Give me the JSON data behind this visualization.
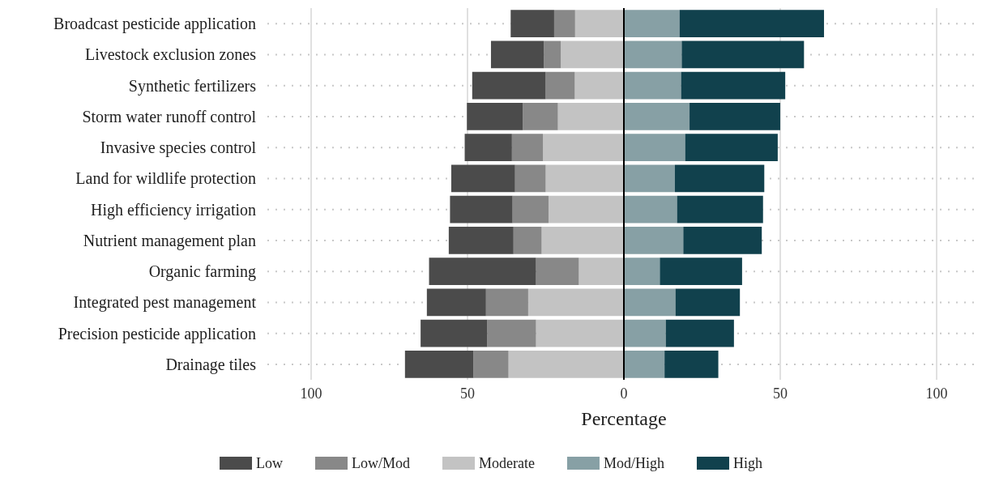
{
  "chart_data": {
    "type": "bar",
    "orientation": "horizontal",
    "stacked": true,
    "xlabel": "Percentage",
    "categories": [
      "Broadcast pesticide application",
      "Livestock exclusion zones",
      "Synthetic fertilizers",
      "Storm water runoff control",
      "Invasive species control",
      "Land for wildlife protection",
      "High efficiency irrigation",
      "Nutrient management plan",
      "Organic farming",
      "Integrated pest management",
      "Precision pesticide application",
      "Drainage tiles"
    ],
    "series": [
      {
        "name": "Moderate",
        "color": "#c3c3c3",
        "values": [
          -15.6,
          -20.2,
          -15.7,
          -21.1,
          -25.9,
          -25.0,
          -24.1,
          -26.3,
          -14.4,
          -30.6,
          -28.1,
          -36.9
        ]
      },
      {
        "name": "Low/Mod",
        "color": "#888888",
        "values": [
          -6.7,
          -5.4,
          -9.3,
          -11.2,
          -9.9,
          -9.8,
          -11.5,
          -9.0,
          -13.7,
          -13.5,
          -15.6,
          -11.2
        ]
      },
      {
        "name": "Low",
        "color": "#4b4b4b",
        "values": [
          -13.9,
          -16.9,
          -23.5,
          -17.9,
          -15.1,
          -20.4,
          -20.0,
          -20.7,
          -34.2,
          -18.9,
          -21.3,
          -21.9
        ]
      },
      {
        "name": "Mod/High",
        "color": "#87a0a5",
        "values": [
          17.8,
          18.5,
          18.3,
          21.0,
          19.6,
          16.3,
          17.0,
          19.0,
          11.5,
          16.5,
          13.4,
          13.0
        ]
      },
      {
        "name": "High",
        "color": "#11414d",
        "values": [
          46.2,
          39.1,
          33.3,
          29.0,
          29.6,
          28.6,
          27.5,
          25.1,
          26.3,
          20.6,
          21.8,
          17.2
        ]
      }
    ],
    "xlim": [
      -114,
      114
    ],
    "xticks": [
      {
        "value": -100,
        "label": "100"
      },
      {
        "value": -50,
        "label": "50"
      },
      0,
      50,
      100
    ],
    "ref_lines": [
      {
        "axis": "x",
        "value": 0,
        "color": "#000000"
      }
    ],
    "grid": true,
    "legend": "bottom"
  }
}
